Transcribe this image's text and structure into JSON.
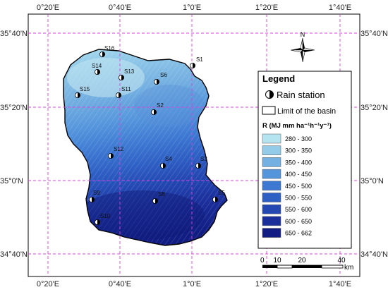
{
  "axes": {
    "top_ticks": [
      "0°20'E",
      "0°40'E",
      "1°0'E",
      "1°20'E",
      "1°40'E"
    ],
    "bottom_ticks": [
      "0°20'E",
      "0°40'E",
      "1°0'E",
      "1°20'E",
      "1°40'E"
    ],
    "left_ticks": [
      "35°40'N",
      "35°20'N",
      "35°0'N",
      "34°40'N"
    ],
    "right_ticks": [
      "35°40'N",
      "35°20'N",
      "35°0'N",
      "34°40'N"
    ]
  },
  "north_arrow": {
    "label": "N",
    "icon": "north-arrow-icon"
  },
  "stations": [
    "S16",
    "S14",
    "S13",
    "S6",
    "S1",
    "S15",
    "S11",
    "S2",
    "S12",
    "S4",
    "S3",
    "S8",
    "S5",
    "S10",
    "S9"
  ],
  "legend": {
    "title": "Legend",
    "rain_station": "Rain station",
    "limit": "Limit of the basin",
    "r_title": "R (MJ mm ha⁻¹h⁻¹y⁻¹)",
    "classes": [
      {
        "label": "280 - 300",
        "color": "#b5e4f1"
      },
      {
        "label": "300 - 350",
        "color": "#93cbe9"
      },
      {
        "label": "350 - 400",
        "color": "#74b0e1"
      },
      {
        "label": "400 - 450",
        "color": "#5595dc"
      },
      {
        "label": "450 - 500",
        "color": "#3d78d2"
      },
      {
        "label": "500 - 550",
        "color": "#2e5fc4"
      },
      {
        "label": "550 - 600",
        "color": "#2447b2"
      },
      {
        "label": "600 - 650",
        "color": "#1b2f9c"
      },
      {
        "label": "650 - 662",
        "color": "#111d82"
      }
    ]
  },
  "scale_bar": {
    "labels": [
      "0",
      "10",
      "20",
      "40"
    ],
    "unit": "km"
  },
  "colors": {
    "grid": "#e040e0",
    "frame": "#000000"
  }
}
